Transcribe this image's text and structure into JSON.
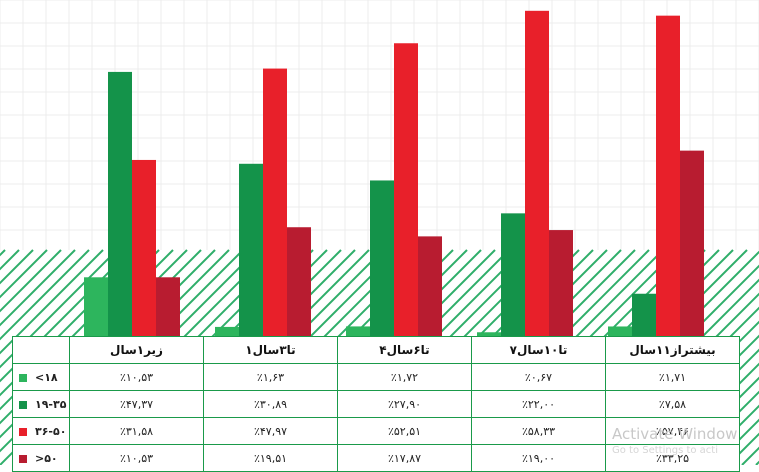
{
  "chart_data": {
    "type": "bar",
    "categories": [
      "زیر۱سال",
      "۱تا۳سال",
      "۴تا۶سال",
      "۷تا۱۰سال",
      "بیشتراز۱۱سال"
    ],
    "series": [
      {
        "name": "<۱۸",
        "color": "#2db55d",
        "values": [
          10.53,
          1.63,
          1.72,
          0.67,
          1.71
        ],
        "labels": [
          "٪۱۰,۵۳",
          "٪۱,۶۳",
          "٪۱,۷۲",
          "٪۰,۶۷",
          "٪۱,۷۱"
        ]
      },
      {
        "name": "۱۹-۳۵",
        "color": "#14934a",
        "values": [
          47.37,
          30.89,
          27.9,
          22.0,
          7.58
        ],
        "labels": [
          "٪۴۷,۳۷",
          "٪۳۰,۸۹",
          "٪۲۷,۹۰",
          "٪۲۲,۰۰",
          "٪۷,۵۸"
        ]
      },
      {
        "name": "۳۶-۵۰",
        "color": "#e8202a",
        "values": [
          31.58,
          47.97,
          52.51,
          58.33,
          57.46
        ],
        "labels": [
          "٪۳۱,۵۸",
          "٪۴۷,۹۷",
          "٪۵۲,۵۱",
          "٪۵۸,۳۳",
          "٪۵۷,۴۶"
        ]
      },
      {
        "name": ">۵۰",
        "color": "#b81c30",
        "values": [
          10.53,
          19.51,
          17.87,
          19.0,
          33.25
        ],
        "labels": [
          "٪۱۰,۵۳",
          "٪۱۹,۵۱",
          "٪۱۷,۸۷",
          "٪۱۹,۰۰",
          "٪۳۳,۲۵"
        ]
      }
    ],
    "grid": true
  },
  "watermark": {
    "line1": "Activate Window",
    "line2": "Go to Settings to acti"
  }
}
